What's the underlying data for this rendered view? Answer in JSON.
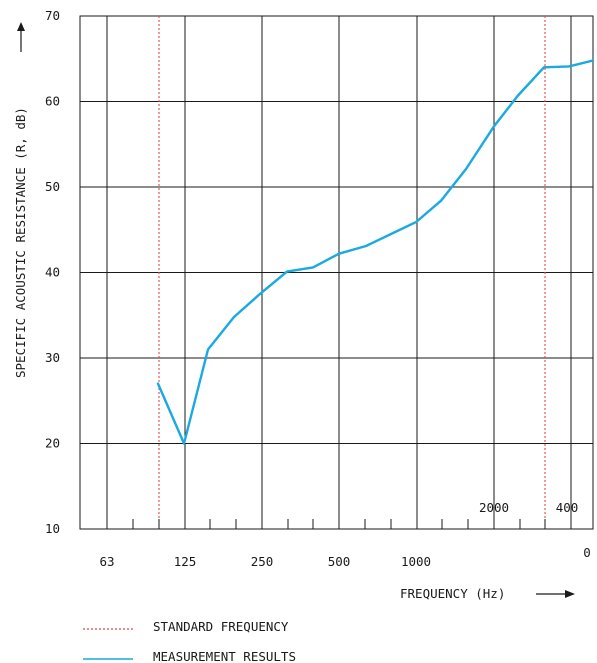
{
  "chart_data": {
    "type": "line",
    "title": "",
    "ylabel": "SPECIFIC ACOUSTIC RESISTANCE (R, dB)",
    "xlabel": "FREQUENCY (Hz)",
    "ylim": [
      10,
      70
    ],
    "y_ticks": [
      "70",
      "60",
      "50",
      "40",
      "30",
      "20",
      "10"
    ],
    "x_tick_labels": [
      "63",
      "125",
      "250",
      "500",
      "1000",
      "2000",
      "400",
      "0"
    ],
    "grid": true,
    "reference_lines": [
      {
        "name": "STANDARD FREQUENCY",
        "color": "#e8474f",
        "style": "dotted",
        "x": "100"
      },
      {
        "name": "STANDARD FREQUENCY",
        "color": "#e8474f",
        "style": "dotted",
        "x": "3150"
      }
    ],
    "series": [
      {
        "name": "MEASUREMENT RESULTS",
        "color": "#1aa9e0",
        "x": [
          "100",
          "125",
          "160",
          "200",
          "250",
          "315",
          "400",
          "500",
          "630",
          "800",
          "1000",
          "1250",
          "1600",
          "2000",
          "2500",
          "3150",
          "4000",
          "5000"
        ],
        "values": [
          27,
          20,
          31,
          34.8,
          37.5,
          40.1,
          40.6,
          42.2,
          43.1,
          44.5,
          45.9,
          48.4,
          52.1,
          57.1,
          60.7,
          64,
          64.1,
          64.8
        ]
      }
    ],
    "legend": {
      "position": "bottom-left",
      "items": [
        {
          "label": "STANDARD FREQUENCY",
          "color": "#e8474f",
          "style": "dotted"
        },
        {
          "label": "MEASUREMENT RESULTS",
          "color": "#1aa9e0",
          "style": "solid"
        }
      ]
    }
  }
}
